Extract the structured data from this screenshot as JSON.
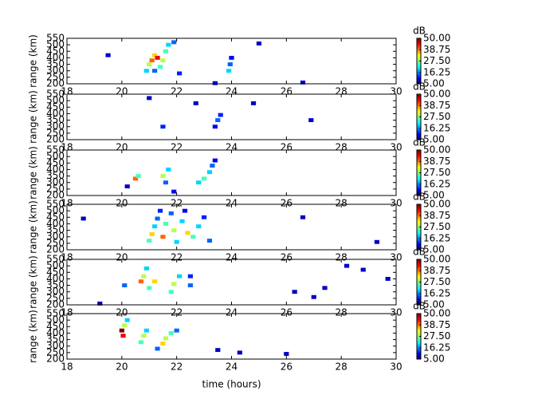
{
  "chart_data": [
    {
      "type": "heatmap",
      "ylabel": "range (km)",
      "colorbar_label": "dB",
      "xlim": [
        18,
        30
      ],
      "xticks": [
        18,
        20,
        22,
        24,
        26,
        28,
        30
      ],
      "ylim": [
        200,
        550
      ],
      "yticks": [
        200,
        250,
        300,
        350,
        400,
        450,
        500,
        550
      ],
      "clim": [
        5,
        50
      ],
      "cticks": [
        {
          "value": 5,
          "label": "5.00"
        },
        {
          "value": 16.25,
          "label": "16.25"
        },
        {
          "value": 27.5,
          "label": "27.50"
        },
        {
          "value": 38.75,
          "label": "38.75"
        },
        {
          "value": 50,
          "label": "50.00"
        }
      ],
      "x": [
        20.9,
        21.0,
        21.1,
        21.2,
        21.3,
        21.5,
        21.6,
        21.7,
        21.9,
        21.4,
        21.2,
        22.1,
        23.9,
        23.95,
        24.0,
        19.5,
        25.0,
        23.4,
        26.6
      ],
      "y": [
        300,
        350,
        380,
        420,
        400,
        380,
        450,
        500,
        520,
        330,
        300,
        280,
        300,
        350,
        400,
        420,
        510,
        205,
        210
      ],
      "values": [
        20,
        30,
        40,
        35,
        45,
        30,
        25,
        20,
        15,
        25,
        15,
        12,
        20,
        15,
        10,
        8,
        8,
        8,
        8
      ]
    },
    {
      "type": "heatmap",
      "ylabel": "range (km)",
      "colorbar_label": "dB",
      "xlim": [
        18,
        30
      ],
      "xticks": [
        18,
        20,
        22,
        24,
        26,
        28,
        30
      ],
      "ylim": [
        200,
        550
      ],
      "yticks": [
        200,
        250,
        300,
        350,
        400,
        450,
        500,
        550
      ],
      "clim": [
        5,
        50
      ],
      "cticks": [
        {
          "value": 5,
          "label": "5.00"
        },
        {
          "value": 16.25,
          "label": "16.25"
        },
        {
          "value": 27.5,
          "label": "27.50"
        },
        {
          "value": 38.75,
          "label": "38.75"
        },
        {
          "value": 50,
          "label": "50.00"
        }
      ],
      "x": [
        23.5,
        23.6,
        23.4,
        21.5,
        21.0,
        24.8,
        22.7,
        26.9
      ],
      "y": [
        350,
        390,
        300,
        300,
        520,
        480,
        480,
        350
      ],
      "values": [
        15,
        12,
        10,
        12,
        8,
        8,
        8,
        8
      ]
    },
    {
      "type": "heatmap",
      "ylabel": "range (km)",
      "colorbar_label": "dB",
      "xlim": [
        18,
        30
      ],
      "xticks": [
        18,
        20,
        22,
        24,
        26,
        28,
        30
      ],
      "ylim": [
        200,
        550
      ],
      "yticks": [
        200,
        250,
        300,
        350,
        400,
        450,
        500,
        550
      ],
      "clim": [
        5,
        50
      ],
      "cticks": [
        {
          "value": 5,
          "label": "5.00"
        },
        {
          "value": 16.25,
          "label": "16.25"
        },
        {
          "value": 27.5,
          "label": "27.50"
        },
        {
          "value": 38.75,
          "label": "38.75"
        },
        {
          "value": 50,
          "label": "50.00"
        }
      ],
      "x": [
        20.5,
        20.6,
        21.5,
        21.7,
        21.6,
        22.8,
        23.0,
        23.2,
        23.3,
        23.4,
        21.9,
        20.2
      ],
      "y": [
        330,
        350,
        350,
        400,
        300,
        300,
        330,
        380,
        430,
        470,
        230,
        270
      ],
      "values": [
        40,
        25,
        30,
        20,
        15,
        20,
        25,
        20,
        15,
        10,
        10,
        8
      ]
    },
    {
      "type": "heatmap",
      "ylabel": "range (km)",
      "colorbar_label": "dB",
      "xlim": [
        18,
        30
      ],
      "xticks": [
        18,
        20,
        22,
        24,
        26,
        28,
        30
      ],
      "ylim": [
        200,
        550
      ],
      "yticks": [
        200,
        250,
        300,
        350,
        400,
        450,
        500,
        550
      ],
      "clim": [
        5,
        50
      ],
      "cticks": [
        {
          "value": 5,
          "label": "5.00"
        },
        {
          "value": 16.25,
          "label": "16.25"
        },
        {
          "value": 27.5,
          "label": "27.50"
        },
        {
          "value": 38.75,
          "label": "38.75"
        },
        {
          "value": 50,
          "label": "50.00"
        }
      ],
      "x": [
        21.0,
        21.1,
        21.2,
        21.3,
        21.5,
        21.6,
        21.8,
        21.9,
        22.0,
        22.2,
        22.4,
        22.6,
        22.8,
        23.0,
        23.2,
        21.4,
        22.3,
        18.6,
        26.6,
        29.3
      ],
      "y": [
        270,
        320,
        380,
        440,
        300,
        400,
        480,
        350,
        260,
        420,
        330,
        300,
        380,
        450,
        270,
        500,
        500,
        440,
        450,
        260
      ],
      "values": [
        25,
        35,
        20,
        15,
        40,
        25,
        15,
        30,
        20,
        20,
        35,
        25,
        20,
        12,
        15,
        12,
        10,
        8,
        8,
        8
      ]
    },
    {
      "type": "heatmap",
      "ylabel": "range (km)",
      "colorbar_label": "dB",
      "xlim": [
        18,
        30
      ],
      "xticks": [
        18,
        20,
        22,
        24,
        26,
        28,
        30
      ],
      "ylim": [
        200,
        550
      ],
      "yticks": [
        200,
        250,
        300,
        350,
        400,
        450,
        500,
        550
      ],
      "clim": [
        5,
        50
      ],
      "cticks": [
        {
          "value": 5,
          "label": "5.00"
        },
        {
          "value": 16.25,
          "label": "16.25"
        },
        {
          "value": 27.5,
          "label": "27.50"
        },
        {
          "value": 38.75,
          "label": "38.75"
        },
        {
          "value": 50,
          "label": "50.00"
        }
      ],
      "x": [
        20.1,
        20.7,
        20.8,
        20.9,
        21.0,
        21.2,
        21.8,
        21.9,
        22.1,
        22.5,
        22.5,
        26.3,
        27.0,
        27.4,
        28.2,
        28.8,
        29.7,
        19.2
      ],
      "y": [
        350,
        380,
        420,
        480,
        330,
        380,
        300,
        360,
        420,
        350,
        420,
        300,
        260,
        330,
        500,
        470,
        400,
        210
      ],
      "values": [
        15,
        40,
        30,
        20,
        25,
        35,
        25,
        30,
        20,
        15,
        12,
        8,
        8,
        8,
        8,
        8,
        8,
        8
      ]
    },
    {
      "type": "heatmap",
      "ylabel": "range (km)",
      "xlabel": "time (hours)",
      "colorbar_label": "dB",
      "xlim": [
        18,
        30
      ],
      "xticks": [
        18,
        20,
        22,
        24,
        26,
        28,
        30
      ],
      "ylim": [
        200,
        550
      ],
      "yticks": [
        200,
        250,
        300,
        350,
        400,
        450,
        500,
        550
      ],
      "clim": [
        5,
        50
      ],
      "cticks": [
        {
          "value": 5,
          "label": "5.00"
        },
        {
          "value": 16.25,
          "label": "16.25"
        },
        {
          "value": 27.5,
          "label": "27.50"
        },
        {
          "value": 38.75,
          "label": "38.75"
        },
        {
          "value": 50,
          "label": "50.00"
        }
      ],
      "x": [
        20.0,
        20.05,
        20.1,
        20.2,
        20.8,
        20.7,
        20.9,
        21.5,
        21.6,
        21.8,
        21.3,
        22.0,
        24.3,
        26.0,
        23.5
      ],
      "y": [
        420,
        380,
        460,
        500,
        380,
        330,
        420,
        320,
        360,
        400,
        280,
        420,
        250,
        240,
        270
      ],
      "values": [
        50,
        45,
        30,
        20,
        30,
        25,
        20,
        35,
        30,
        25,
        15,
        15,
        8,
        8,
        8
      ]
    }
  ]
}
